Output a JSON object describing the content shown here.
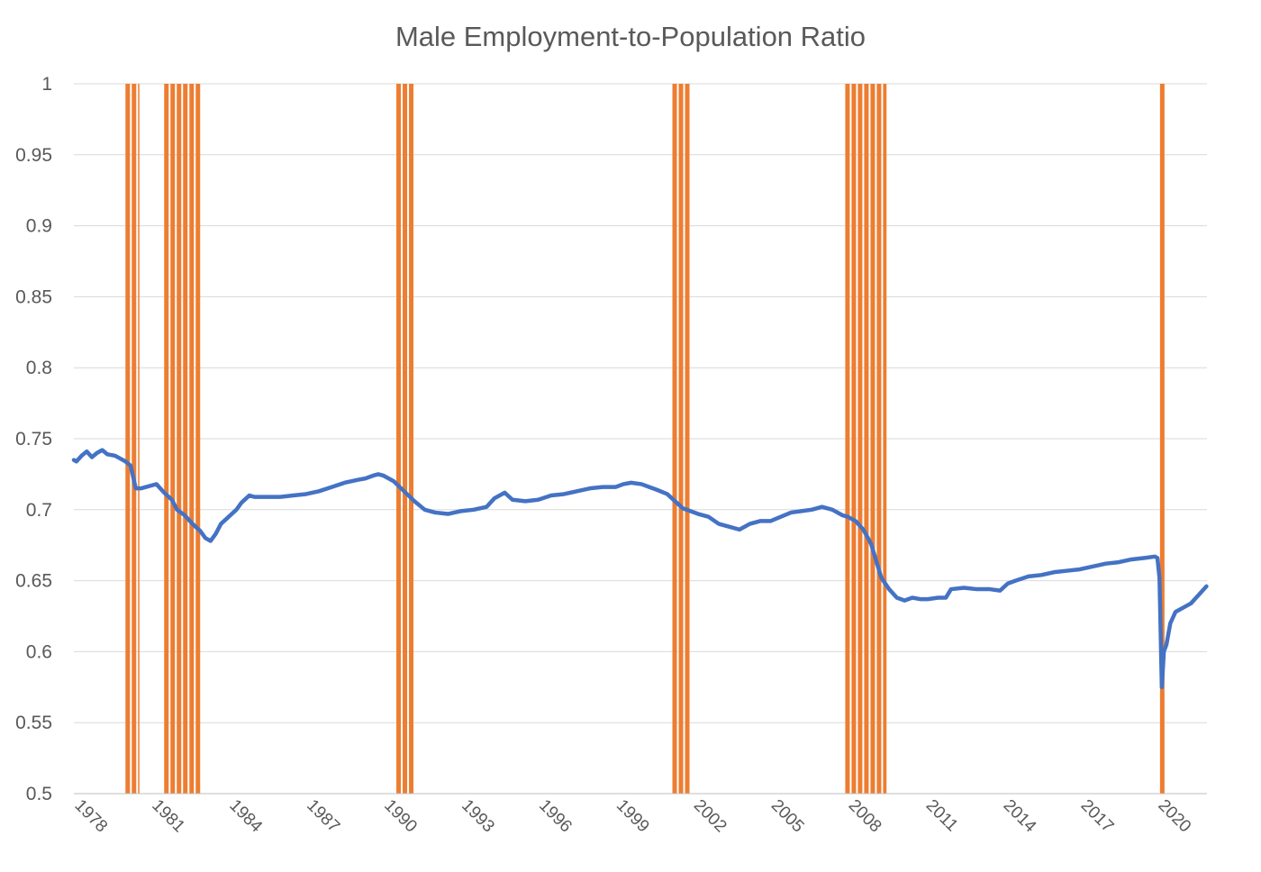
{
  "chart_data": {
    "type": "line",
    "title": "Male Employment-to-Population Ratio",
    "xlabel": "",
    "ylabel": "",
    "ylim": [
      0.5,
      1
    ],
    "xlim": [
      1978.0,
      2021.92
    ],
    "y_ticks": [
      "0.5",
      "0.55",
      "0.6",
      "0.65",
      "0.7",
      "0.75",
      "0.8",
      "0.85",
      "0.9",
      "0.95",
      "1"
    ],
    "x_ticks": [
      "1978",
      "1981",
      "1984",
      "1987",
      "1990",
      "1993",
      "1996",
      "1999",
      "2002",
      "2005",
      "2008",
      "2011",
      "2014",
      "2017",
      "2020"
    ],
    "grid": true,
    "legend": "none",
    "colors": {
      "line": "#4472C4",
      "recession": "#ED7D31"
    },
    "series": [
      {
        "type": "line",
        "x": [
          1978.0,
          1978.1,
          1978.3,
          1978.5,
          1978.7,
          1978.9,
          1979.1,
          1979.3,
          1979.6,
          1979.8,
          1980.0,
          1980.2,
          1980.4,
          1980.6,
          1980.8,
          1981.0,
          1981.2,
          1981.5,
          1981.8,
          1982.0,
          1982.3,
          1982.6,
          1982.9,
          1983.1,
          1983.3,
          1983.5,
          1983.7,
          1984.0,
          1984.3,
          1984.5,
          1984.8,
          1985.0,
          1985.5,
          1986.0,
          1986.5,
          1987.0,
          1987.5,
          1988.0,
          1988.5,
          1989.0,
          1989.3,
          1989.6,
          1989.8,
          1990.0,
          1990.4,
          1990.8,
          1991.2,
          1991.6,
          1992.0,
          1992.5,
          1993.0,
          1993.5,
          1994.0,
          1994.3,
          1994.7,
          1995.0,
          1995.5,
          1996.0,
          1996.5,
          1997.0,
          1997.5,
          1998.0,
          1998.5,
          1999.0,
          1999.3,
          1999.6,
          2000.0,
          2000.3,
          2000.6,
          2001.0,
          2001.3,
          2001.6,
          2001.9,
          2002.2,
          2002.6,
          2003.0,
          2003.4,
          2003.8,
          2004.2,
          2004.6,
          2005.0,
          2005.4,
          2005.8,
          2006.2,
          2006.6,
          2007.0,
          2007.4,
          2007.8,
          2008.0,
          2008.3,
          2008.6,
          2008.9,
          2009.1,
          2009.3,
          2009.6,
          2009.9,
          2010.2,
          2010.5,
          2010.8,
          2011.1,
          2011.5,
          2011.8,
          2012.0,
          2012.5,
          2013.0,
          2013.5,
          2013.9,
          2014.2,
          2014.5,
          2015.0,
          2015.5,
          2016.0,
          2016.5,
          2017.0,
          2017.5,
          2018.0,
          2018.5,
          2019.0,
          2019.5,
          2019.9,
          2020.0,
          2020.08,
          2020.17,
          2020.25,
          2020.35,
          2020.5,
          2020.7,
          2021.0,
          2021.3,
          2021.6,
          2021.9
        ],
        "values": [
          0.735,
          0.734,
          0.738,
          0.741,
          0.737,
          0.74,
          0.742,
          0.739,
          0.738,
          0.736,
          0.734,
          0.731,
          0.715,
          0.715,
          0.716,
          0.717,
          0.718,
          0.712,
          0.707,
          0.7,
          0.696,
          0.69,
          0.685,
          0.68,
          0.678,
          0.683,
          0.69,
          0.695,
          0.7,
          0.705,
          0.71,
          0.709,
          0.709,
          0.709,
          0.71,
          0.711,
          0.713,
          0.716,
          0.719,
          0.721,
          0.722,
          0.724,
          0.725,
          0.724,
          0.72,
          0.713,
          0.706,
          0.7,
          0.698,
          0.697,
          0.699,
          0.7,
          0.702,
          0.708,
          0.712,
          0.707,
          0.706,
          0.707,
          0.71,
          0.711,
          0.713,
          0.715,
          0.716,
          0.716,
          0.718,
          0.719,
          0.718,
          0.716,
          0.714,
          0.711,
          0.706,
          0.701,
          0.699,
          0.697,
          0.695,
          0.69,
          0.688,
          0.686,
          0.69,
          0.692,
          0.692,
          0.695,
          0.698,
          0.699,
          0.7,
          0.702,
          0.7,
          0.696,
          0.695,
          0.692,
          0.686,
          0.676,
          0.664,
          0.652,
          0.644,
          0.638,
          0.636,
          0.638,
          0.637,
          0.637,
          0.638,
          0.638,
          0.644,
          0.645,
          0.644,
          0.644,
          0.643,
          0.648,
          0.65,
          0.653,
          0.654,
          0.656,
          0.657,
          0.658,
          0.66,
          0.662,
          0.663,
          0.665,
          0.666,
          0.667,
          0.666,
          0.652,
          0.575,
          0.6,
          0.605,
          0.62,
          0.628,
          0.631,
          0.634,
          0.64,
          0.646
        ]
      }
    ],
    "shaded_periods": [
      [
        1980.0,
        1980.5
      ],
      [
        1981.5,
        1982.9
      ],
      [
        1990.5,
        1991.2
      ],
      [
        2001.2,
        2001.9
      ],
      [
        2007.9,
        2009.5
      ],
      [
        2020.1,
        2020.3
      ]
    ]
  }
}
